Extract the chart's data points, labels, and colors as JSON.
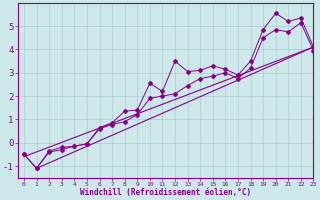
{
  "xlabel": "Windchill (Refroidissement éolien,°C)",
  "xlim": [
    -0.5,
    23
  ],
  "ylim": [
    -1.5,
    6.0
  ],
  "yticks": [
    -1,
    0,
    1,
    2,
    3,
    4,
    5
  ],
  "xticks": [
    0,
    1,
    2,
    3,
    4,
    5,
    6,
    7,
    8,
    9,
    10,
    11,
    12,
    13,
    14,
    15,
    16,
    17,
    18,
    19,
    20,
    21,
    22,
    23
  ],
  "bg_color": "#cce8e8",
  "line_color": "#880088",
  "grid_color": "#aacccc",
  "straight_line": {
    "x": [
      0,
      23
    ],
    "y": [
      -0.6,
      4.1
    ]
  },
  "main_line": {
    "x": [
      0,
      1,
      2,
      3,
      4,
      5,
      6,
      7,
      8,
      9,
      10,
      11,
      12,
      13,
      14,
      15,
      16,
      17,
      18,
      19,
      20,
      21,
      22,
      23
    ],
    "y": [
      -0.5,
      -1.1,
      -0.35,
      -0.2,
      -0.15,
      -0.05,
      0.65,
      0.85,
      1.35,
      1.4,
      2.55,
      2.2,
      3.5,
      3.05,
      3.1,
      3.3,
      3.15,
      2.9,
      3.5,
      4.85,
      5.55,
      5.2,
      5.35,
      4.1
    ]
  },
  "lower_line": {
    "x": [
      0,
      1,
      2,
      3,
      4,
      5,
      6,
      7,
      8,
      9,
      10,
      11,
      12,
      13,
      14,
      15,
      16,
      17,
      18,
      19,
      20,
      21,
      22,
      23
    ],
    "y": [
      -0.5,
      -1.1,
      -0.4,
      -0.3,
      -0.15,
      -0.05,
      0.6,
      0.78,
      0.9,
      1.2,
      1.9,
      2.0,
      2.1,
      2.45,
      2.75,
      2.85,
      3.0,
      2.75,
      3.2,
      4.5,
      4.85,
      4.75,
      5.15,
      3.95
    ]
  },
  "straight_line2": {
    "x": [
      1,
      23
    ],
    "y": [
      -1.1,
      4.1
    ]
  }
}
